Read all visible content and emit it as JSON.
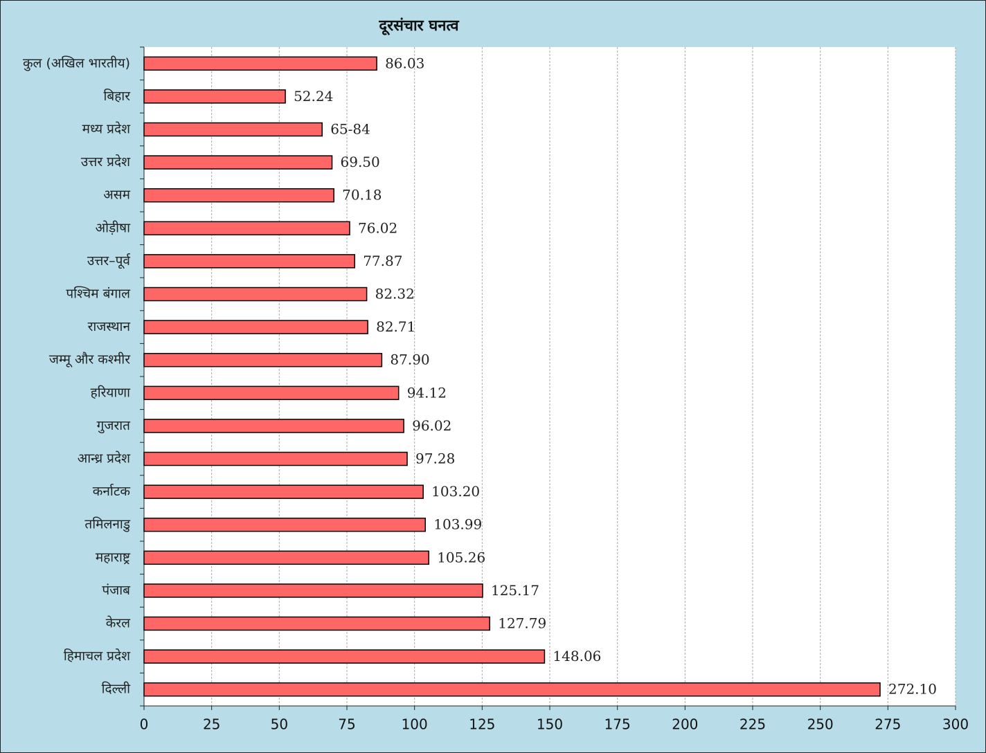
{
  "chart_data": {
    "type": "bar",
    "orientation": "horizontal",
    "title": "दूरसंचार घनत्व",
    "categories": [
      "कुल (अखिल भारतीय)",
      "बिहार",
      "मध्य प्रदेश",
      "उत्तर प्रदेश",
      "असम",
      "ओड़ीषा",
      "उत्तर–पूर्व",
      "पश्चिम बंगाल",
      "राजस्थान",
      "जम्मू और कश्मीर",
      "हरियाणा",
      "गुजरात",
      "आन्ध्र प्रदेश",
      "कर्नाटक",
      "तमिलनाडु",
      "महाराष्ट्र",
      "पंजाब",
      "केरल",
      "हिमाचल प्रदेश",
      "दिल्ली"
    ],
    "values": [
      86.03,
      52.24,
      65.84,
      69.5,
      70.18,
      76.02,
      77.87,
      82.32,
      82.71,
      87.9,
      94.12,
      96.02,
      97.28,
      103.2,
      103.99,
      105.26,
      125.17,
      127.79,
      148.06,
      272.1
    ],
    "value_labels": [
      "86.03",
      "52.24",
      "65-84",
      "69.50",
      "70.18",
      "76.02",
      "77.87",
      "82.32",
      "82.71",
      "87.90",
      "94.12",
      "96.02",
      "97.28",
      "103.20",
      "103.99",
      "105.26",
      "125.17",
      "127.79",
      "148.06",
      "272.10"
    ],
    "color": "#ff6666",
    "xlim": [
      0,
      300
    ],
    "xticks": [
      0,
      25,
      50,
      75,
      100,
      125,
      150,
      175,
      200,
      225,
      250,
      275,
      300
    ],
    "grid": true
  }
}
